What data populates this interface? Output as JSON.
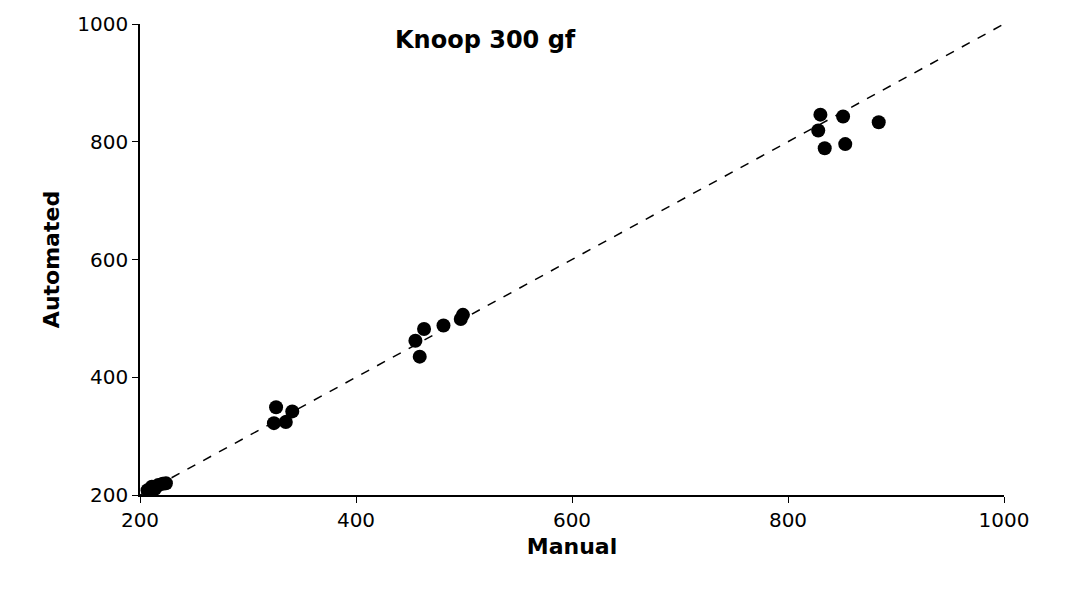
{
  "chart_data": {
    "type": "scatter",
    "title": "Knoop 300 gf",
    "x_label": "Manual",
    "y_label": "Automated",
    "xlim": [
      200,
      1000
    ],
    "ylim": [
      200,
      1000
    ],
    "xticks": [
      200,
      400,
      600,
      800,
      1000
    ],
    "yticks": [
      200,
      400,
      600,
      800,
      1000
    ],
    "grid": false,
    "series": [
      {
        "type": "scatter",
        "marker": "circle",
        "color": "#000000",
        "x": [
          207,
          211,
          214,
          217,
          221,
          224,
          326,
          324,
          335,
          341,
          455,
          459,
          463,
          481,
          497,
          499,
          830,
          828,
          834,
          851,
          853,
          884
        ],
        "values": [
          208,
          214,
          211,
          217,
          219,
          220,
          349,
          322,
          324,
          342,
          462,
          435,
          482,
          488,
          499,
          506,
          846,
          819,
          789,
          843,
          796,
          833
        ]
      },
      {
        "type": "line",
        "line_style": "dash",
        "color": "#000000",
        "x": [
          200,
          1000
        ],
        "values": [
          200,
          1000
        ]
      }
    ]
  }
}
